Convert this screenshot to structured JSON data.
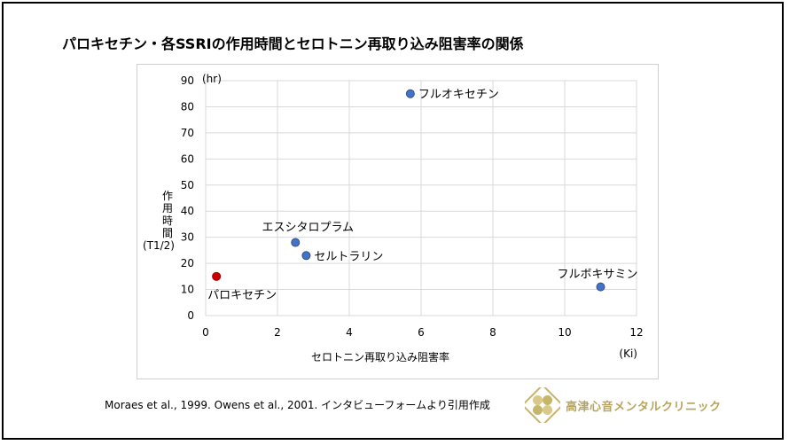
{
  "title": "パロキセチン・各SSRIの作用時間とセロトニン再取り込み阻害率の関係",
  "chart_data": {
    "type": "scatter",
    "title": "パロキセチン・各SSRIの作用時間とセロトニン再取り込み阻害率の関係",
    "xlabel": "セロトニン再取り込み阻害率",
    "xunit": "(Ki)",
    "ylabel_chars": [
      "作",
      "用",
      "時",
      "間"
    ],
    "ylabel_sub": "(T1/2)",
    "yunit": "(hr)",
    "xlim": [
      0,
      12
    ],
    "ylim": [
      0,
      90
    ],
    "xticks": [
      0,
      2,
      4,
      6,
      8,
      10,
      12
    ],
    "yticks": [
      0,
      10,
      20,
      30,
      40,
      50,
      60,
      70,
      80,
      90
    ],
    "grid": true,
    "points": [
      {
        "label": "パロキセチン",
        "x": 0.3,
        "y": 15,
        "color": "#cc0000",
        "label_pos": "below"
      },
      {
        "label": "エスシタロプラム",
        "x": 2.5,
        "y": 28,
        "color": "#4472c4",
        "label_pos": "above"
      },
      {
        "label": "セルトラリン",
        "x": 2.8,
        "y": 23,
        "color": "#4472c4",
        "label_pos": "right"
      },
      {
        "label": "フルオキセチン",
        "x": 5.7,
        "y": 85,
        "color": "#4472c4",
        "label_pos": "right"
      },
      {
        "label": "フルボキサミン",
        "x": 11.0,
        "y": 11,
        "color": "#4472c4",
        "label_pos": "above-left"
      }
    ]
  },
  "citation": "Moraes et al., 1999. Owens et al., 2001. インタビューフォームより引用作成",
  "clinic": {
    "name": "高津心音メンタルクリニック",
    "accent": "#b7a45e",
    "icon": "clover-logo-icon"
  }
}
